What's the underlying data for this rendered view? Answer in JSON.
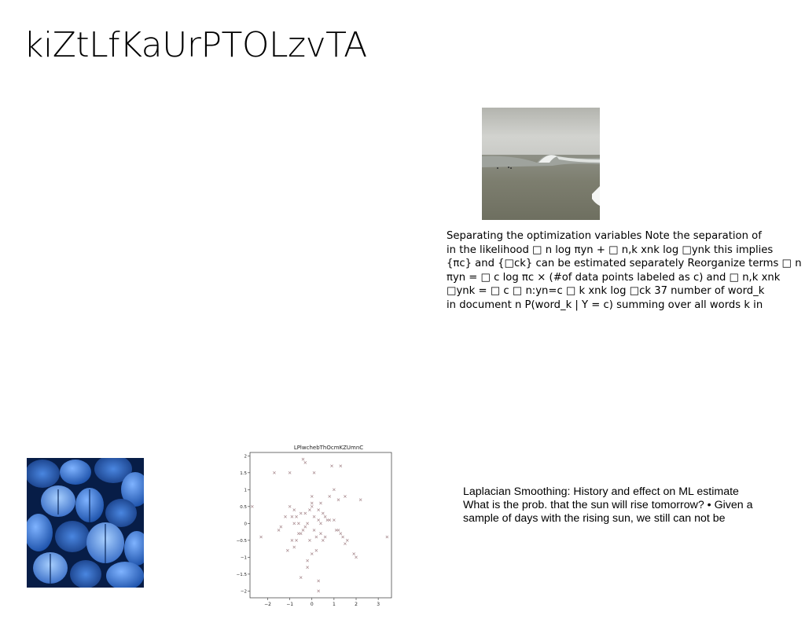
{
  "page": {
    "title": "kiZtLfKaUrPTOLzvTA"
  },
  "text_block_1": {
    "lines": [
      "Separating the optimization variables Note the separation of",
      "in the likelihood □ n log πyn + □ n,k xnk log □ynk this implies",
      "{πc} and {□ck} can be estimated separately Reorganize terms □ n",
      "πyn = □ c log πc × (#of data points labeled as c) and □ n,k xnk",
      "□ynk = □ c □ n:yn=c □ k xnk log □ck 37 number of word_k",
      "in document n P(word_k | Y = c) summing over all words k in"
    ]
  },
  "text_block_2": {
    "lines": [
      "Laplacian Smoothing: History and effect on ML estimate",
      "What is the prob. that the sun will rise tomorrow? • Given a",
      "sample of days with the rising sun, we still can not be"
    ]
  },
  "images": {
    "wave_photo": "ocean-wave-photo",
    "leaf_photo": "blue-leaves-photo"
  },
  "chart_data": {
    "type": "scatter",
    "title": "LPlwchebThOcmKZUmnC",
    "xlim": [
      -2.8,
      3.6
    ],
    "ylim": [
      -2.2,
      2.1
    ],
    "xticks": [
      -2,
      -1,
      0,
      1,
      2,
      3
    ],
    "yticks": [
      -2.0,
      -1.5,
      -1.0,
      -0.5,
      0.0,
      0.5,
      1.0,
      1.5,
      2.0
    ],
    "grid": false,
    "marker_color": "#a88a8e",
    "x": [
      -2.7,
      -2.3,
      -1.7,
      -1.5,
      -1.4,
      -1.2,
      -1.1,
      -1.0,
      -1.0,
      -0.9,
      -0.9,
      -0.8,
      -0.8,
      -0.7,
      -0.7,
      -0.6,
      -0.6,
      -0.5,
      -0.5,
      -0.4,
      -0.4,
      -0.3,
      -0.3,
      -0.2,
      -0.2,
      -0.1,
      -0.1,
      0.0,
      0.0,
      0.0,
      0.1,
      0.1,
      0.1,
      0.2,
      0.2,
      0.3,
      0.3,
      0.3,
      0.4,
      0.4,
      0.4,
      0.5,
      0.5,
      0.6,
      0.7,
      0.8,
      0.8,
      0.9,
      1.0,
      1.0,
      1.1,
      1.2,
      1.3,
      1.3,
      1.4,
      1.5,
      1.5,
      1.6,
      1.9,
      2.0,
      2.2,
      3.4,
      -0.3,
      0.0,
      -0.5,
      1.2,
      0.3,
      -0.8,
      0.6,
      -0.2
    ],
    "y": [
      0.5,
      -0.4,
      1.5,
      -0.2,
      -0.1,
      0.2,
      -0.8,
      0.5,
      1.5,
      -0.5,
      0.2,
      -0.7,
      0.4,
      -0.5,
      0.2,
      -0.3,
      0.0,
      -0.3,
      0.3,
      -0.2,
      1.9,
      -0.1,
      0.3,
      0.0,
      -1.3,
      -0.5,
      0.4,
      -0.9,
      0.5,
      0.8,
      -0.2,
      0.2,
      1.5,
      -0.4,
      -0.8,
      0.1,
      -1.7,
      -2.0,
      -0.3,
      0.0,
      0.6,
      -0.5,
      0.3,
      -0.4,
      0.1,
      0.1,
      0.8,
      1.7,
      0.1,
      1.0,
      -0.2,
      0.7,
      -0.3,
      1.7,
      -0.4,
      -0.6,
      0.8,
      -0.5,
      -0.9,
      -1.0,
      0.7,
      -0.4,
      1.8,
      0.6,
      -1.6,
      -0.2,
      0.4,
      0.0,
      0.2,
      -1.1
    ]
  }
}
